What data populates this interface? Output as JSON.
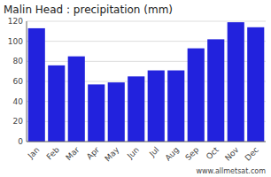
{
  "chart_data": {
    "type": "bar",
    "title": "Malin Head : precipitation (mm)",
    "categories": [
      "Jan",
      "Feb",
      "Mar",
      "Apr",
      "May",
      "Jun",
      "Jul",
      "Aug",
      "Sep",
      "Oct",
      "Nov",
      "Dec"
    ],
    "values": [
      113,
      76,
      85,
      57,
      59,
      65,
      71,
      71,
      93,
      102,
      119,
      114
    ],
    "color": "#2222dd",
    "ylim": [
      0,
      120
    ],
    "yticks": [
      0,
      20,
      40,
      60,
      80,
      100,
      120
    ],
    "grid": true,
    "annotations": [
      "www.allmetsat.com"
    ]
  }
}
